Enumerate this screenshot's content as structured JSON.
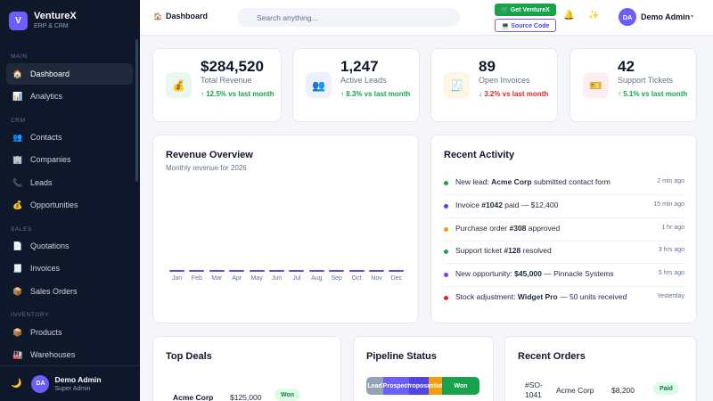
{
  "brand": {
    "logo": "V",
    "name": "VentureX",
    "subtitle": "ERP & CRM"
  },
  "sidebar": {
    "sections": [
      "Main",
      "CRM",
      "Sales",
      "Inventory"
    ],
    "items": [
      {
        "label": "Dashboard",
        "icon": "house-icon",
        "glyph": "🏠",
        "active": true
      },
      {
        "label": "Analytics",
        "icon": "bar-chart-icon",
        "glyph": "📊"
      },
      {
        "label": "Contacts",
        "icon": "people-icon",
        "glyph": "👥"
      },
      {
        "label": "Companies",
        "icon": "building-icon",
        "glyph": "🏢"
      },
      {
        "label": "Leads",
        "icon": "phone-icon",
        "glyph": "📞"
      },
      {
        "label": "Opportunities",
        "icon": "money-bag-icon",
        "glyph": "💰"
      },
      {
        "label": "Quotations",
        "icon": "document-icon",
        "glyph": "📄"
      },
      {
        "label": "Invoices",
        "icon": "receipt-icon",
        "glyph": "🧾"
      },
      {
        "label": "Sales Orders",
        "icon": "package-icon",
        "glyph": "📦"
      },
      {
        "label": "Products",
        "icon": "box-icon",
        "glyph": "📦"
      },
      {
        "label": "Warehouses",
        "icon": "factory-icon",
        "glyph": "🏭"
      }
    ],
    "footer": {
      "avatar": "DA",
      "name": "Demo Admin",
      "role": "Super Admin",
      "theme_icon": "🌙"
    }
  },
  "topbar": {
    "breadcrumb": "Dashboard",
    "breadcrumb_icon": "🏠",
    "search_placeholder": "Search anything...",
    "get_button": "🛒 Get VentureX",
    "source_button": "💻 Source Code",
    "bell_icon": "🔔",
    "spark_icon": "✨",
    "avatar": "DA",
    "user_name": "Demo Admin",
    "caret": "▾"
  },
  "stats": [
    {
      "value": "$284,520",
      "label": "Total Revenue",
      "change": "↑ 12.5% vs last month",
      "trend": "up",
      "icon": "money-bag-icon",
      "glyph": "💰",
      "tint": "#e8f8ef"
    },
    {
      "value": "1,247",
      "label": "Active Leads",
      "change": "↑ 8.3% vs last month",
      "trend": "up",
      "icon": "people-icon",
      "glyph": "👥",
      "tint": "#eef0fb"
    },
    {
      "value": "89",
      "label": "Open Invoices",
      "change": "↓ 3.2% vs last month",
      "trend": "down",
      "icon": "receipt-icon",
      "glyph": "🧾",
      "tint": "#fdf6e3"
    },
    {
      "value": "42",
      "label": "Support Tickets",
      "change": "↑ 5.1% vs last month",
      "trend": "up",
      "icon": "ticket-icon",
      "glyph": "🎫",
      "tint": "#fdeef0"
    }
  ],
  "revenue": {
    "title": "Revenue Overview",
    "subtitle": "Monthly revenue for 2026",
    "months": [
      "Jan",
      "Feb",
      "Mar",
      "Apr",
      "May",
      "Jun",
      "Jul",
      "Aug",
      "Sep",
      "Oct",
      "Nov",
      "Dec"
    ],
    "series_color": "#5b4fe0"
  },
  "activity": {
    "title": "Recent Activity",
    "items": [
      {
        "prefix": "New lead: ",
        "bold": "Acme Corp",
        "suffix": " submitted contact form",
        "time": "2 min ago",
        "color": "#16a34a"
      },
      {
        "prefix": "Invoice ",
        "bold": "#1042",
        "suffix": " paid — $12,400",
        "time": "15 min ago",
        "color": "#4f46e5"
      },
      {
        "prefix": "Purchase order ",
        "bold": "#308",
        "suffix": " approved",
        "time": "1 hr ago",
        "color": "#f59e0b"
      },
      {
        "prefix": "Support ticket ",
        "bold": "#128",
        "suffix": " resolved",
        "time": "3 hrs ago",
        "color": "#16a34a"
      },
      {
        "prefix": "New opportunity: ",
        "bold": "$45,000",
        "suffix": " — Pinnacle Systems",
        "time": "5 hrs ago",
        "color": "#7c3aed"
      },
      {
        "prefix": "Stock adjustment: ",
        "bold": "Widget Pro",
        "suffix": " — 50 units received",
        "time": "Yesterday",
        "color": "#dc2626"
      }
    ]
  },
  "deals": {
    "title": "Top Deals",
    "rows": [
      {
        "name": "Acme Corp",
        "amount": "$125,000",
        "status": "Won"
      }
    ]
  },
  "pipeline": {
    "title": "Pipeline Status",
    "stages": [
      {
        "label": "Lead",
        "color": "#94a3b8",
        "share": 0.15
      },
      {
        "label": "Prospect",
        "color": "#6d5dfc",
        "share": 0.23
      },
      {
        "label": "Proposal",
        "color": "#4f46e5",
        "share": 0.17
      },
      {
        "label": "Negotiation",
        "color": "#f59e0b",
        "share": 0.12
      },
      {
        "label": "Won",
        "color": "#16a34a",
        "share": 0.33
      }
    ]
  },
  "orders": {
    "title": "Recent Orders",
    "rows": [
      {
        "id": "#SO-1041",
        "company": "Acme Corp",
        "amount": "$8,200",
        "status": "Paid"
      }
    ]
  }
}
